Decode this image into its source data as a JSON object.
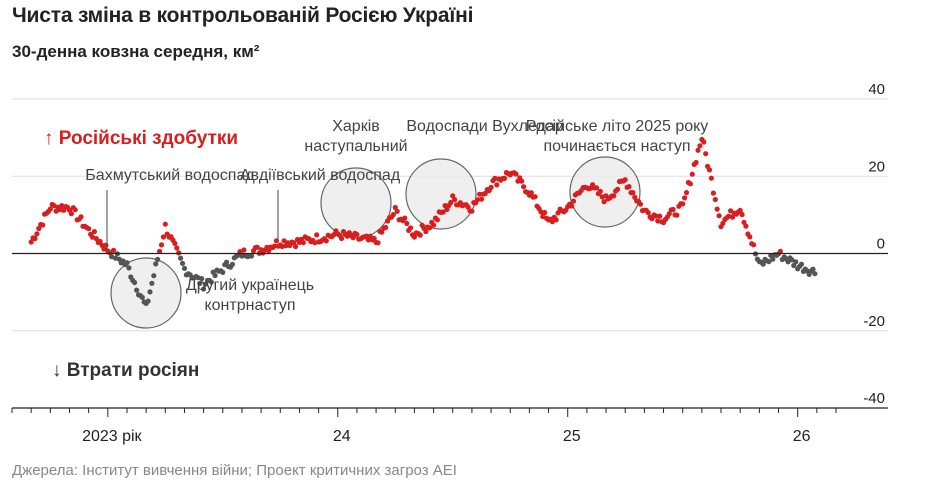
{
  "title": "Чиста зміна в контрольованій Росією Україні",
  "subtitle": "30-денна ковзна середня, км²",
  "source": "Джерела: Інститут вивчення війни; Проект критичних загроз AEI",
  "labels": {
    "gain": "↑ Російські здобутки",
    "loss": "↓ Втрати росіян"
  },
  "colors": {
    "gain": "#d81e1e",
    "loss": "#555555",
    "circle_fill": "#e9e9e9",
    "circle_stroke": "#666666"
  },
  "chart_data": {
    "type": "scatter",
    "ylim": [
      -40,
      40
    ],
    "yticks": [
      "40",
      "20",
      "0",
      "-20",
      "-40"
    ],
    "xticks": [
      {
        "label": "2023 рік",
        "date": "2023-01"
      },
      {
        "label": "24",
        "date": "2024-01"
      },
      {
        "label": "25",
        "date": "2025-01"
      },
      {
        "label": "26",
        "date": "2026-01"
      }
    ],
    "annotations": [
      {
        "lines": [
          "Бахмутський водоспад"
        ],
        "date": "2023-01"
      },
      {
        "lines": [
          "Другий українець",
          "контрнаступ"
        ],
        "date": "2023-06"
      },
      {
        "lines": [
          "Авдіївський водоспад"
        ],
        "date": "2023-10"
      },
      {
        "lines": [
          "Харків",
          "наступальний"
        ],
        "date": "2024-05"
      },
      {
        "lines": [
          "Водоспади Вухледар"
        ],
        "date": "2024-10"
      },
      {
        "lines": [
          "Російське літо 2025 року",
          "починається наступ"
        ],
        "date": "2025-06"
      }
    ],
    "series": [
      {
        "x": [
          "2022-09",
          "2022-10",
          "2022-11",
          "2022-12",
          "2023-01",
          "2023-02",
          "2023-03",
          "2023-04",
          "2023-05",
          "2023-06",
          "2023-07",
          "2023-08",
          "2023-09",
          "2023-10",
          "2023-11",
          "2023-12",
          "2024-01",
          "2024-02",
          "2024-03",
          "2024-04",
          "2024-05",
          "2024-06",
          "2024-07",
          "2024-08",
          "2024-09",
          "2024-10",
          "2024-11",
          "2024-12",
          "2025-01",
          "2025-02",
          "2025-03",
          "2025-04",
          "2025-05",
          "2025-06",
          "2025-07",
          "2025-08",
          "2025-09",
          "2025-10",
          "2025-11",
          "2025-12",
          "2026-01",
          "2026-02"
        ],
        "y": [
          3,
          12,
          12,
          6,
          1,
          -3,
          -14,
          7,
          -4,
          -8,
          -4,
          0,
          1,
          3,
          3,
          4,
          5,
          4,
          3,
          11,
          5,
          8,
          14,
          12,
          18,
          21,
          16,
          8,
          12,
          18,
          14,
          19,
          11,
          9,
          12,
          30,
          8,
          12,
          -3,
          0,
          -3,
          -5
        ]
      }
    ]
  }
}
